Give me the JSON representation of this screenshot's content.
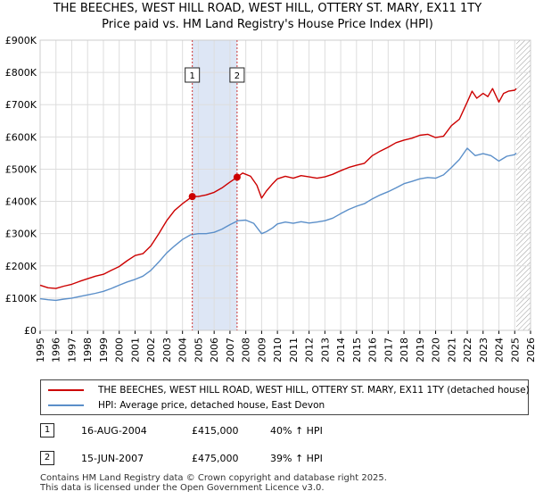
{
  "header": {
    "title": "THE BEECHES, WEST HILL ROAD, WEST HILL, OTTERY ST. MARY, EX11 1TY",
    "subtitle": "Price paid vs. HM Land Registry's House Price Index (HPI)"
  },
  "colors": {
    "property": "#cc0000",
    "hpi": "#5b8fc9",
    "band": "#dde6f5",
    "grid": "#dddddd",
    "marker_line": "#cc3333"
  },
  "legend": {
    "property_label": "THE BEECHES, WEST HILL ROAD, WEST HILL, OTTERY ST. MARY, EX11 1TY (detached house)",
    "hpi_label": "HPI: Average price, detached house, East Devon"
  },
  "sales": [
    {
      "num": "1",
      "date": "16-AUG-2004",
      "price": "£415,000",
      "hpi_change": "40% ↑ HPI"
    },
    {
      "num": "2",
      "date": "15-JUN-2007",
      "price": "£475,000",
      "hpi_change": "39% ↑ HPI"
    }
  ],
  "footer": {
    "line1": "Contains HM Land Registry data © Crown copyright and database right 2025.",
    "line2": "This data is licensed under the Open Government Licence v3.0."
  },
  "chart_data": {
    "type": "line",
    "title": "THE BEECHES, WEST HILL ROAD, WEST HILL, OTTERY ST. MARY, EX11 1TY",
    "subtitle": "Price paid vs. HM Land Registry's House Price Index (HPI)",
    "xlabel": "",
    "ylabel": "",
    "xlim": [
      1995,
      2026
    ],
    "ylim": [
      0,
      900000
    ],
    "y_ticks": [
      {
        "value": 0,
        "label": "£0"
      },
      {
        "value": 100000,
        "label": "£100K"
      },
      {
        "value": 200000,
        "label": "£200K"
      },
      {
        "value": 300000,
        "label": "£300K"
      },
      {
        "value": 400000,
        "label": "£400K"
      },
      {
        "value": 500000,
        "label": "£500K"
      },
      {
        "value": 600000,
        "label": "£600K"
      },
      {
        "value": 700000,
        "label": "£700K"
      },
      {
        "value": 800000,
        "label": "£800K"
      },
      {
        "value": 900000,
        "label": "£900K"
      }
    ],
    "x_ticks": [
      "1995",
      "1996",
      "1997",
      "1998",
      "1999",
      "2000",
      "2001",
      "2002",
      "2003",
      "2004",
      "2005",
      "2006",
      "2007",
      "2008",
      "2009",
      "2010",
      "2011",
      "2012",
      "2013",
      "2014",
      "2015",
      "2016",
      "2017",
      "2018",
      "2019",
      "2020",
      "2021",
      "2022",
      "2023",
      "2024",
      "2025",
      "2026"
    ],
    "grid": true,
    "shaded_band": [
      2004.62,
      2007.45
    ],
    "hatched_future_from": 2025.1,
    "series": [
      {
        "name": "THE BEECHES, WEST HILL ROAD, WEST HILL, OTTERY ST. MARY, EX11 1TY (detached house)",
        "x": [
          1995.0,
          1995.5,
          1996.0,
          1996.5,
          1997.0,
          1997.5,
          1998.0,
          1998.5,
          1999.0,
          1999.5,
          2000.0,
          2000.5,
          2001.0,
          2001.5,
          2002.0,
          2002.5,
          2003.0,
          2003.5,
          2004.0,
          2004.62,
          2005.0,
          2005.5,
          2006.0,
          2006.5,
          2007.0,
          2007.45,
          2007.8,
          2008.3,
          2008.7,
          2009.0,
          2009.3,
          2009.7,
          2010.0,
          2010.5,
          2011.0,
          2011.5,
          2012.0,
          2012.5,
          2013.0,
          2013.5,
          2014.0,
          2014.5,
          2015.0,
          2015.5,
          2016.0,
          2016.5,
          2017.0,
          2017.5,
          2018.0,
          2018.5,
          2019.0,
          2019.5,
          2020.0,
          2020.5,
          2021.0,
          2021.5,
          2022.0,
          2022.3,
          2022.6,
          2023.0,
          2023.3,
          2023.6,
          2024.0,
          2024.3,
          2024.6,
          2025.0,
          2025.1
        ],
        "values": [
          140000,
          132000,
          130000,
          137000,
          143000,
          152000,
          160000,
          168000,
          174000,
          186000,
          198000,
          216000,
          232000,
          238000,
          262000,
          300000,
          340000,
          372000,
          393000,
          415000,
          415000,
          420000,
          428000,
          442000,
          460000,
          475000,
          488000,
          478000,
          450000,
          410000,
          432000,
          455000,
          470000,
          478000,
          472000,
          480000,
          476000,
          472000,
          476000,
          484000,
          495000,
          505000,
          512000,
          518000,
          542000,
          556000,
          568000,
          582000,
          590000,
          596000,
          605000,
          608000,
          598000,
          602000,
          635000,
          655000,
          708000,
          742000,
          720000,
          735000,
          725000,
          750000,
          708000,
          735000,
          742000,
          745000,
          750000
        ]
      },
      {
        "name": "HPI: Average price, detached house, East Devon",
        "x": [
          1995.0,
          1995.5,
          1996.0,
          1996.5,
          1997.0,
          1997.5,
          1998.0,
          1998.5,
          1999.0,
          1999.5,
          2000.0,
          2000.5,
          2001.0,
          2001.5,
          2002.0,
          2002.5,
          2003.0,
          2003.5,
          2004.0,
          2004.5,
          2005.0,
          2005.5,
          2006.0,
          2006.5,
          2007.0,
          2007.5,
          2008.0,
          2008.5,
          2009.0,
          2009.3,
          2009.7,
          2010.0,
          2010.5,
          2011.0,
          2011.5,
          2012.0,
          2012.5,
          2013.0,
          2013.5,
          2014.0,
          2014.5,
          2015.0,
          2015.5,
          2016.0,
          2016.5,
          2017.0,
          2017.5,
          2018.0,
          2018.5,
          2019.0,
          2019.5,
          2020.0,
          2020.5,
          2021.0,
          2021.5,
          2022.0,
          2022.5,
          2023.0,
          2023.5,
          2024.0,
          2024.5,
          2025.0,
          2025.1
        ],
        "values": [
          98000,
          95000,
          93000,
          97000,
          100000,
          105000,
          110000,
          115000,
          121000,
          130000,
          140000,
          150000,
          158000,
          168000,
          186000,
          212000,
          240000,
          262000,
          282000,
          296000,
          300000,
          300000,
          304000,
          314000,
          328000,
          340000,
          342000,
          332000,
          300000,
          306000,
          318000,
          330000,
          336000,
          332000,
          337000,
          333000,
          336000,
          340000,
          348000,
          362000,
          375000,
          385000,
          393000,
          408000,
          420000,
          430000,
          442000,
          455000,
          462000,
          470000,
          474000,
          472000,
          482000,
          505000,
          530000,
          565000,
          542000,
          548000,
          542000,
          525000,
          540000,
          545000,
          550000
        ]
      }
    ],
    "annotations": [
      {
        "label": "1",
        "x": 2004.62,
        "y": 415000
      },
      {
        "label": "2",
        "x": 2007.45,
        "y": 475000
      }
    ]
  }
}
